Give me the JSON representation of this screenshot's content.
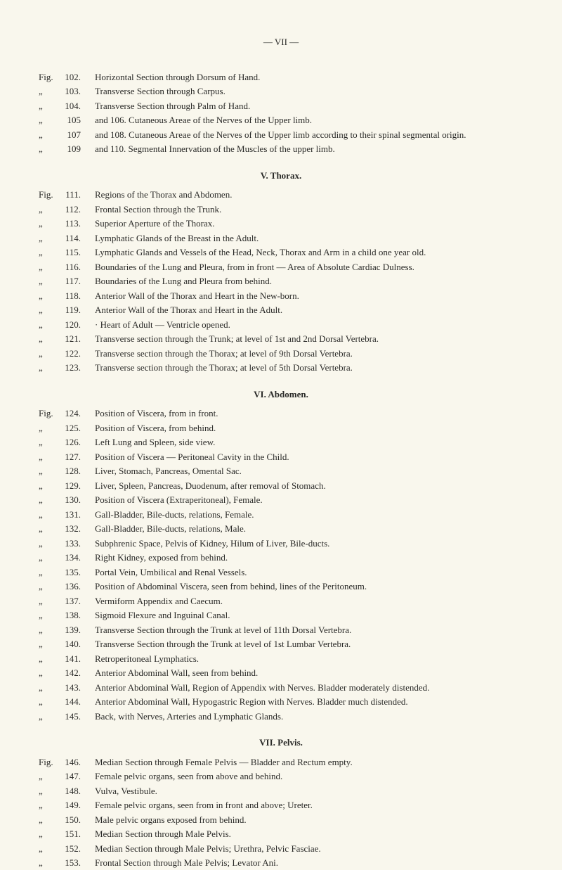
{
  "pageNumber": "— VII —",
  "figLabel": "Fig.",
  "ditto": "„",
  "sections": [
    {
      "entries": [
        {
          "type": "first",
          "num": "102.",
          "desc": "Horizontal Section through Dorsum of Hand."
        },
        {
          "type": "ditto",
          "num": "103.",
          "desc": "Transverse Section through Carpus."
        },
        {
          "type": "ditto",
          "num": "104.",
          "desc": "Transverse Section through Palm of Hand."
        },
        {
          "type": "ditto",
          "num": "105",
          "desc": "and 106. Cutaneous Areae of the Nerves of the Upper limb."
        },
        {
          "type": "ditto",
          "num": "107",
          "desc": "and 108. Cutaneous Areae of the Nerves of the Upper limb according to their spinal segmental origin.",
          "hanging": true
        },
        {
          "type": "ditto",
          "num": "109",
          "desc": "and 110. Segmental Innervation of the Muscles of the upper limb."
        }
      ]
    },
    {
      "heading": "V. Thorax.",
      "entries": [
        {
          "type": "first",
          "num": "111.",
          "desc": "Regions of the Thorax and Abdomen."
        },
        {
          "type": "ditto",
          "num": "112.",
          "desc": "Frontal Section through the Trunk."
        },
        {
          "type": "ditto",
          "num": "113.",
          "desc": "Superior Aperture of the Thorax."
        },
        {
          "type": "ditto",
          "num": "114.",
          "desc": "Lymphatic Glands of the Breast in the Adult."
        },
        {
          "type": "ditto",
          "num": "115.",
          "desc": "Lymphatic Glands and Vessels of the Head, Neck, Thorax and Arm in a child one year old.",
          "hanging": true
        },
        {
          "type": "ditto",
          "num": "116.",
          "desc": "Boundaries of the Lung and Pleura, from in front — Area of Absolute Cardiac Dulness."
        },
        {
          "type": "ditto",
          "num": "117.",
          "desc": "Boundaries of the Lung and Pleura from behind."
        },
        {
          "type": "ditto",
          "num": "118.",
          "desc": "Anterior Wall of the Thorax and Heart in the New-born."
        },
        {
          "type": "ditto",
          "num": "119.",
          "desc": "Anterior Wall of the Thorax and Heart in the Adult."
        },
        {
          "type": "ditto",
          "num": "120.",
          "desc": "· Heart of Adult — Ventricle opened."
        },
        {
          "type": "ditto",
          "num": "121.",
          "desc": "Transverse section through the Trunk; at level of 1st and 2nd Dorsal Vertebra."
        },
        {
          "type": "ditto",
          "num": "122.",
          "desc": "Transverse section through the Thorax; at level of 9th Dorsal Vertebra."
        },
        {
          "type": "ditto",
          "num": "123.",
          "desc": "Transverse section through the Thorax; at level of 5th Dorsal Vertebra."
        }
      ]
    },
    {
      "heading": "VI. Abdomen.",
      "entries": [
        {
          "type": "first",
          "num": "124.",
          "desc": "Position of Viscera, from in front."
        },
        {
          "type": "ditto",
          "num": "125.",
          "desc": "Position of Viscera, from behind."
        },
        {
          "type": "ditto",
          "num": "126.",
          "desc": "Left Lung and Spleen, side view."
        },
        {
          "type": "ditto",
          "num": "127.",
          "desc": "Position of Viscera — Peritoneal Cavity in the Child."
        },
        {
          "type": "ditto",
          "num": "128.",
          "desc": "Liver, Stomach, Pancreas, Omental Sac."
        },
        {
          "type": "ditto",
          "num": "129.",
          "desc": "Liver, Spleen, Pancreas, Duodenum, after removal of Stomach."
        },
        {
          "type": "ditto",
          "num": "130.",
          "desc": "Position of Viscera (Extraperitoneal), Female."
        },
        {
          "type": "ditto",
          "num": "131.",
          "desc": "Gall-Bladder, Bile-ducts, relations, Female."
        },
        {
          "type": "ditto",
          "num": "132.",
          "desc": "Gall-Bladder, Bile-ducts, relations, Male."
        },
        {
          "type": "ditto",
          "num": "133.",
          "desc": "Subphrenic Space, Pelvis of Kidney, Hilum of Liver, Bile-ducts."
        },
        {
          "type": "ditto",
          "num": "134.",
          "desc": "Right Kidney, exposed from behind."
        },
        {
          "type": "ditto",
          "num": "135.",
          "desc": "Portal Vein, Umbilical and Renal Vessels."
        },
        {
          "type": "ditto",
          "num": "136.",
          "desc": "Position of Abdominal Viscera, seen from behind, lines of the Peritoneum."
        },
        {
          "type": "ditto",
          "num": "137.",
          "desc": "Vermiform Appendix and Caecum."
        },
        {
          "type": "ditto",
          "num": "138.",
          "desc": "Sigmoid Flexure and Inguinal Canal."
        },
        {
          "type": "ditto",
          "num": "139.",
          "desc": "Transverse Section through the Trunk at level of 11th Dorsal Vertebra."
        },
        {
          "type": "ditto",
          "num": "140.",
          "desc": "Transverse Section through the Trunk at level of 1st Lumbar Vertebra."
        },
        {
          "type": "ditto",
          "num": "141.",
          "desc": "Retroperitoneal Lymphatics."
        },
        {
          "type": "ditto",
          "num": "142.",
          "desc": "Anterior Abdominal Wall, seen from behind."
        },
        {
          "type": "ditto",
          "num": "143.",
          "desc": "Anterior Abdominal Wall, Region of Appendix with Nerves. Bladder moderately distended.",
          "hanging": true
        },
        {
          "type": "ditto",
          "num": "144.",
          "desc": "Anterior Abdominal Wall, Hypogastric Region with Nerves. Bladder much distended."
        },
        {
          "type": "ditto",
          "num": "145.",
          "desc": "Back, with Nerves, Arteries and Lymphatic Glands."
        }
      ]
    },
    {
      "heading": "VII. Pelvis.",
      "entries": [
        {
          "type": "first",
          "num": "146.",
          "desc": "Median Section through Female Pelvis — Bladder and Rectum empty."
        },
        {
          "type": "ditto",
          "num": "147.",
          "desc": "Female pelvic organs, seen from above and behind."
        },
        {
          "type": "ditto",
          "num": "148.",
          "desc": "Vulva, Vestibule."
        },
        {
          "type": "ditto",
          "num": "149.",
          "desc": "Female pelvic organs, seen from in front and above; Ureter."
        },
        {
          "type": "ditto",
          "num": "150.",
          "desc": "Male pelvic organs exposed from behind."
        },
        {
          "type": "ditto",
          "num": "151.",
          "desc": "Median Section through Male Pelvis."
        },
        {
          "type": "ditto",
          "num": "152.",
          "desc": "Median Section through Male Pelvis; Urethra, Pelvic Fasciae."
        },
        {
          "type": "ditto",
          "num": "153.",
          "desc": "Frontal Section through Male Pelvis; Levator Ani."
        }
      ]
    }
  ]
}
